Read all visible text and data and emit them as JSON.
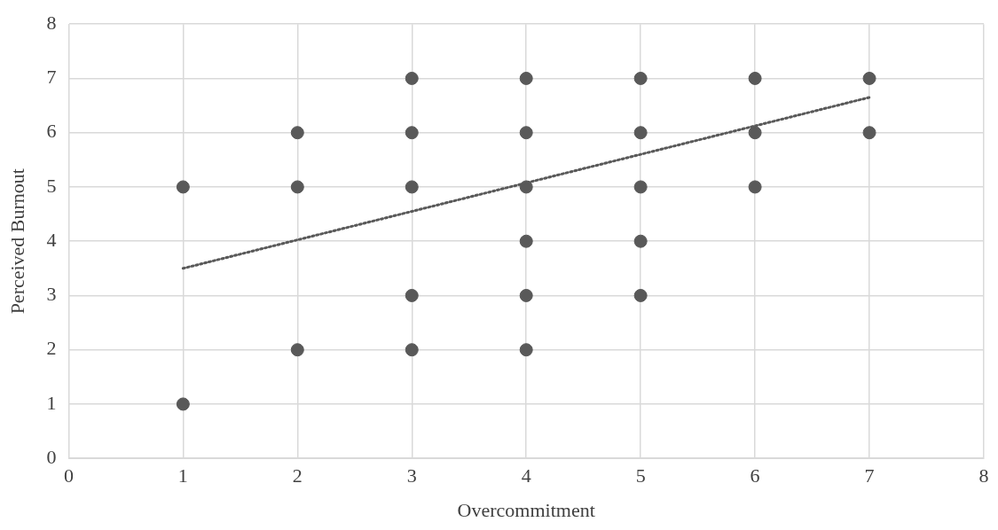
{
  "chart_data": {
    "type": "scatter",
    "xlabel": "Overcommitment",
    "ylabel": "Perceived Burnout",
    "xlim": [
      0,
      8
    ],
    "xticks": [
      0,
      1,
      2,
      3,
      4,
      5,
      6,
      7,
      8
    ],
    "ylim": [
      0,
      8
    ],
    "yticks": [
      0,
      1,
      2,
      3,
      4,
      5,
      6,
      7,
      8
    ],
    "grid": true,
    "legend": false,
    "marker": "circle",
    "series": [
      {
        "type": "scatter",
        "color": "#595959",
        "x": [
          1,
          1,
          2,
          2,
          2,
          3,
          3,
          3,
          3,
          3,
          4,
          4,
          4,
          4,
          4,
          4,
          5,
          5,
          5,
          5,
          5,
          6,
          6,
          6,
          7,
          7
        ],
        "values": [
          5,
          1,
          6,
          5,
          2,
          7,
          6,
          5,
          3,
          2,
          7,
          6,
          5,
          4,
          3,
          2,
          7,
          6,
          5,
          4,
          3,
          7,
          6,
          5,
          7,
          6
        ]
      },
      {
        "type": "line",
        "color": "#595959",
        "x": [
          1,
          7
        ],
        "values": [
          3.5,
          6.65
        ],
        "line_style": "dotted",
        "marker": "none"
      }
    ]
  }
}
